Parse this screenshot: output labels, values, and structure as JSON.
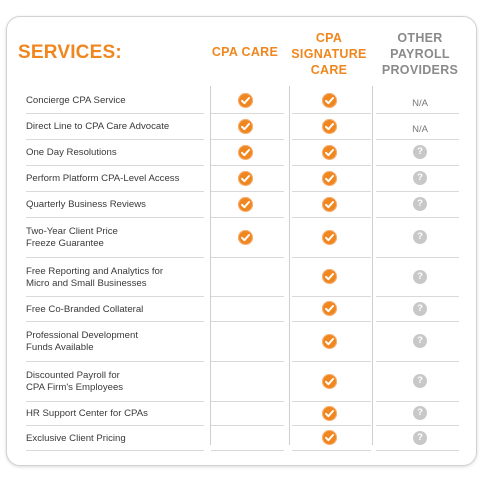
{
  "title": "SERVICES:",
  "columns": [
    {
      "lines": [
        "CPA CARE"
      ]
    },
    {
      "lines": [
        "CPA",
        "SIGNATURE",
        "CARE"
      ]
    },
    {
      "lines": [
        "OTHER",
        "PAYROLL",
        "PROVIDERS"
      ]
    }
  ],
  "na_text": "N/A",
  "qmark_text": "?",
  "rows": [
    {
      "label": [
        "Concierge CPA Service"
      ],
      "cpa_care": "check",
      "signature": "check",
      "other": "na"
    },
    {
      "label": [
        "Direct Line to CPA Care Advocate"
      ],
      "cpa_care": "check",
      "signature": "check",
      "other": "na"
    },
    {
      "label": [
        "One Day Resolutions"
      ],
      "cpa_care": "check",
      "signature": "check",
      "other": "question"
    },
    {
      "label": [
        "Perform Platform CPA-Level Access"
      ],
      "cpa_care": "check",
      "signature": "check",
      "other": "question"
    },
    {
      "label": [
        "Quarterly Business Reviews"
      ],
      "cpa_care": "check",
      "signature": "check",
      "other": "question"
    },
    {
      "label": [
        "Two-Year Client Price",
        "Freeze Guarantee"
      ],
      "cpa_care": "check",
      "signature": "check",
      "other": "question"
    },
    {
      "label": [
        "Free Reporting and Analytics for",
        "Micro and Small Businesses"
      ],
      "cpa_care": "",
      "signature": "check",
      "other": "question"
    },
    {
      "label": [
        "Free Co-Branded Collateral"
      ],
      "cpa_care": "",
      "signature": "check",
      "other": "question"
    },
    {
      "label": [
        "Professional Development",
        "Funds Available"
      ],
      "cpa_care": "",
      "signature": "check",
      "other": "question"
    },
    {
      "label": [
        "Discounted Payroll for",
        "CPA Firm's Employees"
      ],
      "cpa_care": "",
      "signature": "check",
      "other": "question"
    },
    {
      "label": [
        "HR Support Center for CPAs"
      ],
      "cpa_care": "",
      "signature": "check",
      "other": "question"
    },
    {
      "label": [
        "Exclusive Client Pricing"
      ],
      "cpa_care": "",
      "signature": "check",
      "other": "question"
    }
  ],
  "colors": {
    "accent": "#f0861e",
    "muted": "#8a8a8a",
    "question": "#c8c8c8"
  }
}
